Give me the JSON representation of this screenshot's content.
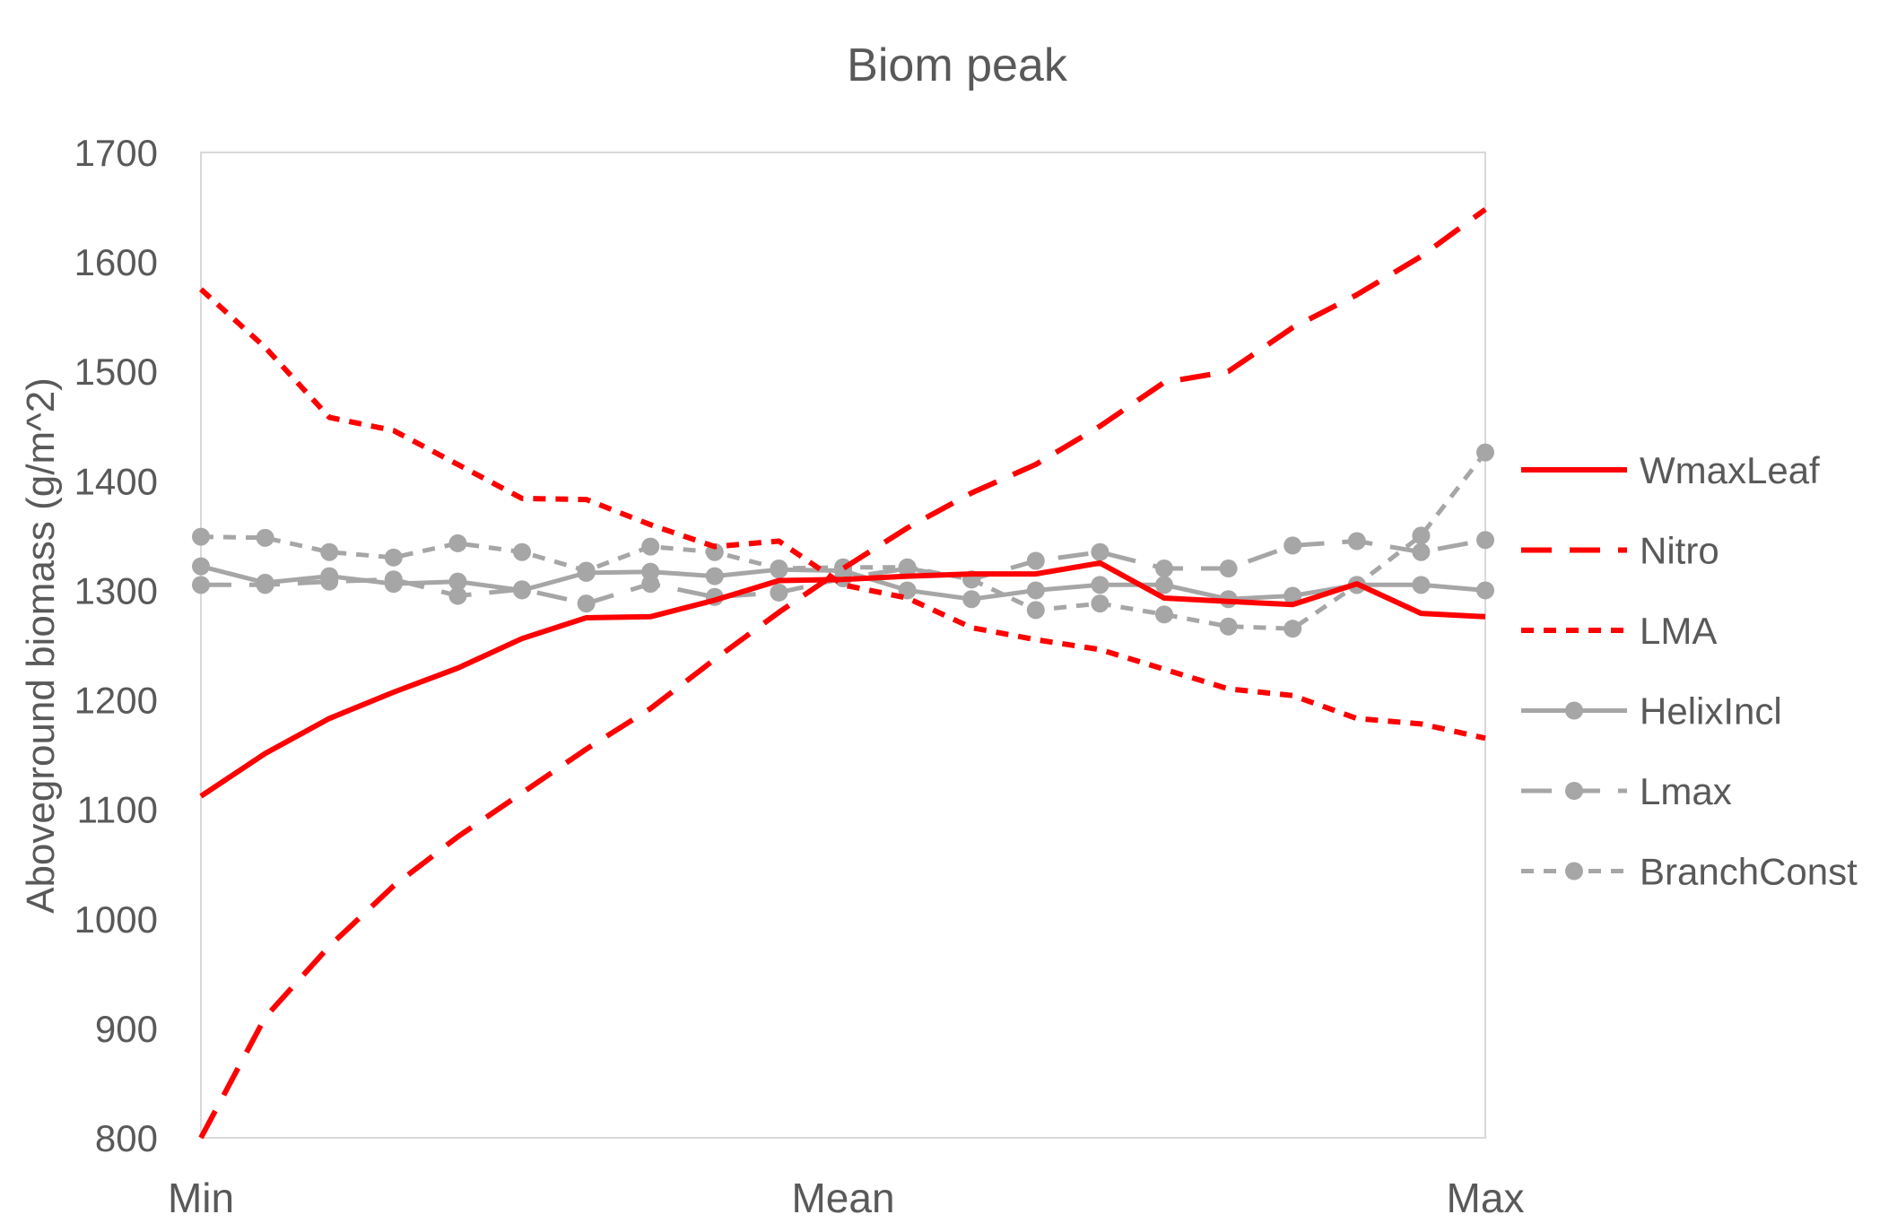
{
  "chart_data": {
    "type": "line",
    "title": "Biom peak",
    "xlabel": "",
    "ylabel": "Aboveground biomass (g/m^2)",
    "ylim": [
      800,
      1700
    ],
    "yticks": [
      800,
      900,
      1000,
      1100,
      1200,
      1300,
      1400,
      1500,
      1600,
      1700
    ],
    "xtick_labels": [
      "Min",
      "Mean",
      "Max"
    ],
    "grid": false,
    "legend_position": "right",
    "colors": {
      "red": "#ff0000",
      "gray": "#a6a6a6",
      "text": "#595959",
      "frame": "#d9d9d9"
    },
    "series": [
      {
        "name": "WmaxLeaf",
        "color": "#ff0000",
        "dash": "solid",
        "marker": false,
        "values": [
          1112,
          1151,
          1183,
          1207,
          1229,
          1256,
          1275,
          1276,
          1291,
          1309,
          1310,
          1313,
          1315,
          1315,
          1325,
          1293,
          1290,
          1287,
          1306,
          1279,
          1276
        ]
      },
      {
        "name": "Nitro",
        "color": "#ff0000",
        "dash": "long",
        "marker": false,
        "values": [
          800,
          910,
          975,
          1030,
          1075,
          1115,
          1155,
          1192,
          1237,
          1280,
          1320,
          1357,
          1389,
          1415,
          1450,
          1490,
          1500,
          1540,
          1570,
          1605,
          1648
        ]
      },
      {
        "name": "LMA",
        "color": "#ff0000",
        "dash": "short",
        "marker": false,
        "values": [
          1575,
          1522,
          1458,
          1446,
          1415,
          1384,
          1383,
          1360,
          1340,
          1345,
          1305,
          1293,
          1266,
          1255,
          1246,
          1228,
          1210,
          1204,
          1183,
          1178,
          1165
        ]
      },
      {
        "name": "HelixIncl",
        "color": "#a6a6a6",
        "dash": "solid",
        "marker": true,
        "values": [
          1322,
          1307,
          1313,
          1306,
          1308,
          1300,
          1316,
          1317,
          1313,
          1319,
          1318,
          1300,
          1292,
          1300,
          1305,
          1305,
          1292,
          1295,
          1305,
          1305,
          1300
        ]
      },
      {
        "name": "Lmax",
        "color": "#a6a6a6",
        "dash": "long",
        "marker": true,
        "values": [
          1305,
          1305,
          1308,
          1310,
          1295,
          1301,
          1288,
          1306,
          1294,
          1298,
          1311,
          1320,
          1310,
          1327,
          1335,
          1320,
          1320,
          1341,
          1345,
          1335,
          1346
        ]
      },
      {
        "name": "BranchConst",
        "color": "#a6a6a6",
        "dash": "short",
        "marker": true,
        "values": [
          1349,
          1348,
          1335,
          1330,
          1343,
          1335,
          1318,
          1340,
          1335,
          1320,
          1321,
          1321,
          1310,
          1282,
          1288,
          1278,
          1267,
          1265,
          1305,
          1350,
          1426
        ]
      }
    ]
  }
}
